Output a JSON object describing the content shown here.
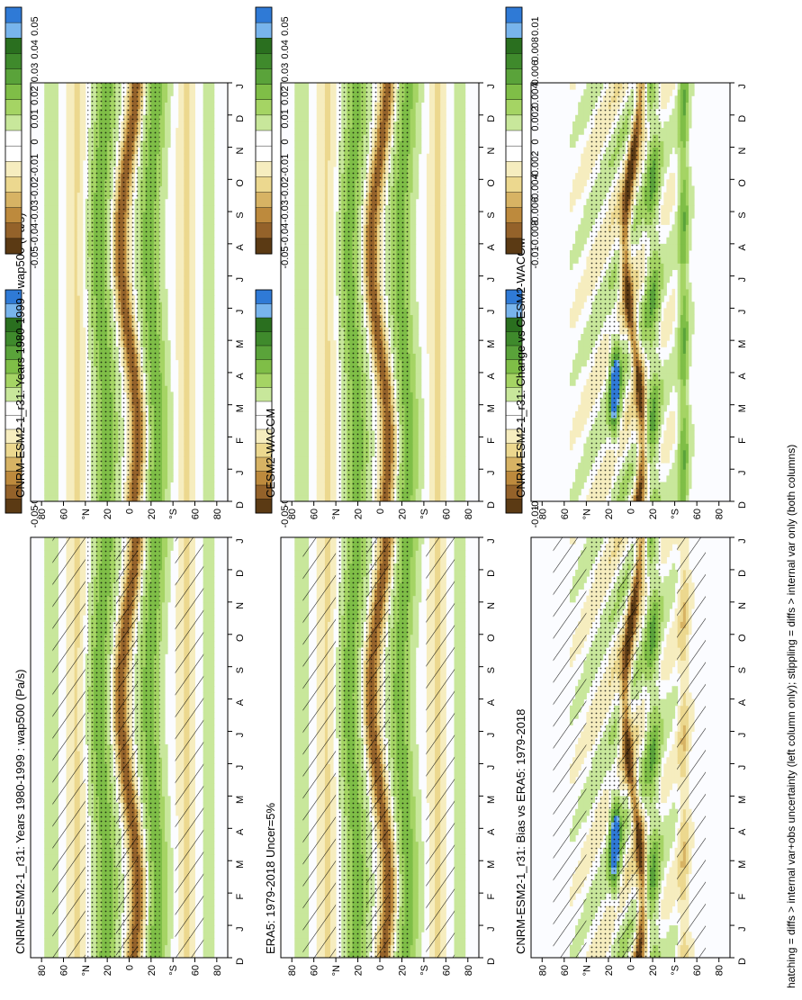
{
  "footnote": "hatching = diffs > internal var+obs uncertainty (left column only); stippling = diffs > internal var only (both columns)",
  "month_labels": [
    "D",
    "J",
    "F",
    "M",
    "A",
    "M",
    "J",
    "J",
    "A",
    "S",
    "O",
    "N",
    "D",
    "J"
  ],
  "lat_labels": [
    "80",
    "60",
    "°N",
    "20",
    "0",
    "20",
    "°S",
    "60",
    "80"
  ],
  "palette": {
    "blue_dark": "#2f7ad6",
    "blue_light": "#78b4ec",
    "green": [
      "#2a6f1f",
      "#3f8a2c",
      "#5aa33a",
      "#7fbe47",
      "#a5d464",
      "#c8e79b"
    ],
    "white": "#ffffff",
    "brown": [
      "#f6edbf",
      "#ecd88f",
      "#d7b364",
      "#bd8a3d",
      "#94622a",
      "#5b3a14"
    ]
  },
  "chart_data": [
    {
      "type": "heatmap",
      "panel": "a",
      "title": "CNRM-ESM2-1_r31: Years 1980-1999 : wap500 (Pa/s)",
      "x_axis": "month",
      "y_axis": "latitude",
      "ylim": [
        -90,
        90
      ],
      "colorbar": [
        "0.05",
        "0.04",
        "0.03",
        "0.02",
        "0.01",
        "0",
        "-0.01",
        "-0.02",
        "-0.03",
        "-0.04",
        "-0.05"
      ],
      "hatching": true,
      "stippling": true
    },
    {
      "type": "heatmap",
      "panel": "b",
      "title": "CNRM-ESM2-1_r31: Years 1980-1999 : wap500 (Pa/s)",
      "x_axis": "month",
      "y_axis": "latitude",
      "ylim": [
        -90,
        90
      ],
      "colorbar": [
        "0.05",
        "0.04",
        "0.03",
        "0.02",
        "0.01",
        "0",
        "-0.01",
        "-0.02",
        "-0.03",
        "-0.04",
        "-0.05"
      ],
      "hatching": false,
      "stippling": true
    },
    {
      "type": "heatmap",
      "panel": "c",
      "title": "ERA5: 1979-2018 Uncer=5%",
      "x_axis": "month",
      "y_axis": "latitude",
      "ylim": [
        -90,
        90
      ],
      "colorbar": [
        "0.05",
        "0.04",
        "0.03",
        "0.02",
        "0.01",
        "0",
        "-0.01",
        "-0.02",
        "-0.03",
        "-0.04",
        "-0.05"
      ],
      "hatching": true,
      "stippling": true
    },
    {
      "type": "heatmap",
      "panel": "d",
      "title": "CESM2-WACCM",
      "x_axis": "month",
      "y_axis": "latitude",
      "ylim": [
        -90,
        90
      ],
      "colorbar": [
        "0.05",
        "0.04",
        "0.03",
        "0.02",
        "0.01",
        "0",
        "-0.01",
        "-0.02",
        "-0.03",
        "-0.04",
        "-0.05"
      ],
      "hatching": false,
      "stippling": true
    },
    {
      "type": "heatmap",
      "panel": "e",
      "title": "CNRM-ESM2-1_r31: Bias vs ERA5: 1979-2018",
      "x_axis": "month",
      "y_axis": "latitude",
      "ylim": [
        -90,
        90
      ],
      "colorbar": [
        "0.01",
        "0.008",
        "0.006",
        "0.004",
        "0.002",
        "0",
        "-0.002",
        "-0.004",
        "-0.006",
        "-0.008",
        "-0.01"
      ],
      "hatching": true,
      "stippling": true,
      "difference": true
    },
    {
      "type": "heatmap",
      "panel": "f",
      "title": "CNRM-ESM2-1_r31: Change vs CESM2-WACCM",
      "x_axis": "month",
      "y_axis": "latitude",
      "ylim": [
        -90,
        90
      ],
      "colorbar": [
        "0.01",
        "0.008",
        "0.006",
        "0.004",
        "0.002",
        "0",
        "-0.002",
        "-0.004",
        "-0.006",
        "-0.008",
        "-0.01"
      ],
      "hatching": false,
      "stippling": true,
      "difference": true
    }
  ]
}
